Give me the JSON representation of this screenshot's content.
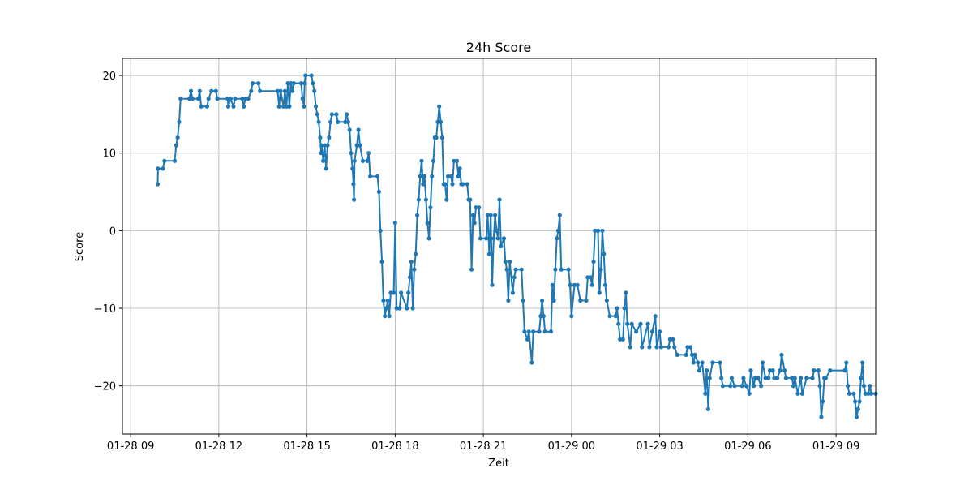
{
  "chart_data": {
    "type": "line",
    "title": "24h Score",
    "xlabel": "Zeit",
    "ylabel": "Score",
    "ylim": [
      -26.2,
      22.2
    ],
    "xlim_hours": [
      8.72,
      34.35
    ],
    "x_ticks": [
      {
        "label": "01-28 09",
        "hour": 9
      },
      {
        "label": "01-28 12",
        "hour": 12
      },
      {
        "label": "01-28 15",
        "hour": 15
      },
      {
        "label": "01-28 18",
        "hour": 18
      },
      {
        "label": "01-28 21",
        "hour": 21
      },
      {
        "label": "01-29 00",
        "hour": 24
      },
      {
        "label": "01-29 03",
        "hour": 27
      },
      {
        "label": "01-29 06",
        "hour": 30
      },
      {
        "label": "01-29 09",
        "hour": 33
      }
    ],
    "y_ticks": [
      20,
      10,
      0,
      -10,
      -20
    ],
    "grid": true,
    "line_color": "#1f77b4",
    "marker": "circle",
    "series": [
      {
        "name": "Score",
        "x_unit": "hours since 01-28 00:00",
        "points": [
          [
            9.92,
            6
          ],
          [
            9.93,
            8
          ],
          [
            10.1,
            8
          ],
          [
            10.15,
            9
          ],
          [
            10.5,
            9
          ],
          [
            10.55,
            11
          ],
          [
            10.6,
            12
          ],
          [
            10.65,
            14
          ],
          [
            10.7,
            17
          ],
          [
            11.0,
            17
          ],
          [
            11.05,
            18
          ],
          [
            11.1,
            17
          ],
          [
            11.3,
            17
          ],
          [
            11.35,
            18
          ],
          [
            11.4,
            16
          ],
          [
            11.6,
            16
          ],
          [
            11.65,
            17
          ],
          [
            11.75,
            18
          ],
          [
            11.9,
            18
          ],
          [
            11.95,
            17
          ],
          [
            12.3,
            17
          ],
          [
            12.32,
            16
          ],
          [
            12.4,
            17
          ],
          [
            12.5,
            16
          ],
          [
            12.55,
            17
          ],
          [
            12.8,
            17
          ],
          [
            12.85,
            16
          ],
          [
            12.9,
            17
          ],
          [
            13.0,
            17
          ],
          [
            13.1,
            18
          ],
          [
            13.15,
            19
          ],
          [
            13.35,
            19
          ],
          [
            13.4,
            18
          ],
          [
            14.0,
            18
          ],
          [
            14.05,
            16
          ],
          [
            14.1,
            18
          ],
          [
            14.2,
            16
          ],
          [
            14.25,
            18
          ],
          [
            14.3,
            16
          ],
          [
            14.35,
            19
          ],
          [
            14.4,
            16
          ],
          [
            14.45,
            19
          ],
          [
            14.5,
            18
          ],
          [
            14.55,
            19
          ],
          [
            14.8,
            19
          ],
          [
            14.85,
            17
          ],
          [
            14.9,
            16
          ],
          [
            14.92,
            19
          ],
          [
            14.95,
            20
          ],
          [
            15.15,
            20
          ],
          [
            15.2,
            19
          ],
          [
            15.25,
            18
          ],
          [
            15.3,
            16
          ],
          [
            15.35,
            15
          ],
          [
            15.4,
            14
          ],
          [
            15.45,
            12
          ],
          [
            15.48,
            10
          ],
          [
            15.5,
            11
          ],
          [
            15.55,
            9
          ],
          [
            15.6,
            11
          ],
          [
            15.65,
            8
          ],
          [
            15.7,
            11
          ],
          [
            15.75,
            12
          ],
          [
            15.8,
            14
          ],
          [
            15.85,
            15
          ],
          [
            16.0,
            15
          ],
          [
            16.05,
            14
          ],
          [
            16.3,
            14
          ],
          [
            16.35,
            15
          ],
          [
            16.4,
            14
          ],
          [
            16.45,
            13
          ],
          [
            16.5,
            10
          ],
          [
            16.55,
            8
          ],
          [
            16.58,
            6
          ],
          [
            16.6,
            4
          ],
          [
            16.62,
            9
          ],
          [
            16.7,
            11
          ],
          [
            16.75,
            13
          ],
          [
            16.8,
            11
          ],
          [
            16.9,
            9
          ],
          [
            17.05,
            9
          ],
          [
            17.1,
            10
          ],
          [
            17.15,
            7
          ],
          [
            17.4,
            7
          ],
          [
            17.45,
            5
          ],
          [
            17.5,
            0
          ],
          [
            17.55,
            -4
          ],
          [
            17.6,
            -9
          ],
          [
            17.65,
            -11
          ],
          [
            17.7,
            -10
          ],
          [
            17.75,
            -9
          ],
          [
            17.8,
            -11
          ],
          [
            17.85,
            -8
          ],
          [
            17.95,
            -8
          ],
          [
            18.0,
            1
          ],
          [
            18.05,
            -10
          ],
          [
            18.15,
            -10
          ],
          [
            18.2,
            -8
          ],
          [
            18.4,
            -10
          ],
          [
            18.45,
            -8
          ],
          [
            18.5,
            -6
          ],
          [
            18.55,
            -4
          ],
          [
            18.6,
            -10
          ],
          [
            18.65,
            -5
          ],
          [
            18.7,
            -3
          ],
          [
            18.75,
            2
          ],
          [
            18.8,
            4
          ],
          [
            18.85,
            7
          ],
          [
            18.9,
            9
          ],
          [
            18.95,
            6
          ],
          [
            19.0,
            7
          ],
          [
            19.05,
            4
          ],
          [
            19.1,
            1
          ],
          [
            19.15,
            -1
          ],
          [
            19.2,
            3
          ],
          [
            19.25,
            7
          ],
          [
            19.3,
            9
          ],
          [
            19.35,
            12
          ],
          [
            19.4,
            12
          ],
          [
            19.45,
            14
          ],
          [
            19.5,
            16
          ],
          [
            19.55,
            14
          ],
          [
            19.6,
            12
          ],
          [
            19.65,
            6
          ],
          [
            19.7,
            6
          ],
          [
            19.75,
            4
          ],
          [
            19.8,
            7
          ],
          [
            19.9,
            7
          ],
          [
            19.95,
            6
          ],
          [
            20.0,
            9
          ],
          [
            20.1,
            9
          ],
          [
            20.15,
            7
          ],
          [
            20.2,
            8
          ],
          [
            20.25,
            6
          ],
          [
            20.3,
            6
          ],
          [
            20.45,
            6
          ],
          [
            20.5,
            4
          ],
          [
            20.55,
            4
          ],
          [
            20.6,
            -5
          ],
          [
            20.65,
            2
          ],
          [
            20.7,
            1
          ],
          [
            20.75,
            3
          ],
          [
            20.85,
            3
          ],
          [
            20.9,
            -1
          ],
          [
            21.1,
            -1
          ],
          [
            21.15,
            2
          ],
          [
            21.2,
            -3
          ],
          [
            21.25,
            2
          ],
          [
            21.3,
            -7
          ],
          [
            21.35,
            -1
          ],
          [
            21.4,
            2
          ],
          [
            21.45,
            0
          ],
          [
            21.5,
            -1
          ],
          [
            21.55,
            4
          ],
          [
            21.6,
            -2
          ],
          [
            21.7,
            -1
          ],
          [
            21.75,
            -4
          ],
          [
            21.8,
            -5
          ],
          [
            21.85,
            -9
          ],
          [
            21.9,
            -4
          ],
          [
            22.0,
            -8
          ],
          [
            22.05,
            -6
          ],
          [
            22.1,
            -5
          ],
          [
            22.3,
            -5
          ],
          [
            22.35,
            -9
          ],
          [
            22.4,
            -13
          ],
          [
            22.5,
            -14
          ],
          [
            22.55,
            -13
          ],
          [
            22.65,
            -17
          ],
          [
            22.7,
            -13
          ],
          [
            22.9,
            -13
          ],
          [
            22.95,
            -11
          ],
          [
            23.0,
            -9
          ],
          [
            23.05,
            -11
          ],
          [
            23.1,
            -13
          ],
          [
            23.3,
            -13
          ],
          [
            23.35,
            -7
          ],
          [
            23.4,
            -9
          ],
          [
            23.45,
            -5
          ],
          [
            23.5,
            -1
          ],
          [
            23.55,
            0
          ],
          [
            23.6,
            2
          ],
          [
            23.65,
            -5
          ],
          [
            23.9,
            -5
          ],
          [
            23.95,
            -7
          ],
          [
            24.0,
            -11
          ],
          [
            24.1,
            -7
          ],
          [
            24.2,
            -7
          ],
          [
            24.3,
            -9
          ],
          [
            24.5,
            -9
          ],
          [
            24.55,
            -6
          ],
          [
            24.65,
            -6
          ],
          [
            24.7,
            -7
          ],
          [
            24.75,
            -4
          ],
          [
            24.8,
            0
          ],
          [
            24.9,
            0
          ],
          [
            24.95,
            -8
          ],
          [
            25.0,
            -5
          ],
          [
            25.05,
            0
          ],
          [
            25.1,
            -3
          ],
          [
            25.15,
            -7
          ],
          [
            25.2,
            -9
          ],
          [
            25.3,
            -11
          ],
          [
            25.5,
            -11
          ],
          [
            25.55,
            -10
          ],
          [
            25.6,
            -12
          ],
          [
            25.65,
            -14
          ],
          [
            25.75,
            -14
          ],
          [
            25.8,
            -10
          ],
          [
            25.85,
            -8
          ],
          [
            25.9,
            -12
          ],
          [
            26.0,
            -15
          ],
          [
            26.05,
            -12
          ],
          [
            26.2,
            -13
          ],
          [
            26.35,
            -12
          ],
          [
            26.4,
            -15
          ],
          [
            26.6,
            -12
          ],
          [
            26.65,
            -15
          ],
          [
            26.75,
            -13
          ],
          [
            26.85,
            -11
          ],
          [
            26.9,
            -15
          ],
          [
            27.0,
            -13
          ],
          [
            27.05,
            -15
          ],
          [
            27.3,
            -15
          ],
          [
            27.35,
            -14
          ],
          [
            27.45,
            -14
          ],
          [
            27.5,
            -15
          ],
          [
            27.6,
            -16
          ],
          [
            27.9,
            -16
          ],
          [
            27.95,
            -15
          ],
          [
            28.05,
            -15
          ],
          [
            28.1,
            -16
          ],
          [
            28.15,
            -17
          ],
          [
            28.2,
            -16
          ],
          [
            28.3,
            -17
          ],
          [
            28.35,
            -18
          ],
          [
            28.45,
            -17
          ],
          [
            28.55,
            -21
          ],
          [
            28.6,
            -18
          ],
          [
            28.65,
            -23
          ],
          [
            28.7,
            -19
          ],
          [
            28.8,
            -17
          ],
          [
            29.05,
            -17
          ],
          [
            29.1,
            -19
          ],
          [
            29.15,
            -20
          ],
          [
            29.4,
            -20
          ],
          [
            29.45,
            -19
          ],
          [
            29.55,
            -20
          ],
          [
            29.8,
            -20
          ],
          [
            29.85,
            -19
          ],
          [
            29.95,
            -20
          ],
          [
            30.05,
            -21
          ],
          [
            30.1,
            -18
          ],
          [
            30.2,
            -20
          ],
          [
            30.25,
            -19
          ],
          [
            30.35,
            -19
          ],
          [
            30.45,
            -20
          ],
          [
            30.5,
            -17
          ],
          [
            30.6,
            -19
          ],
          [
            30.7,
            -19
          ],
          [
            30.75,
            -18
          ],
          [
            30.85,
            -18
          ],
          [
            30.9,
            -19
          ],
          [
            31.0,
            -19
          ],
          [
            31.1,
            -18
          ],
          [
            31.15,
            -16
          ],
          [
            31.25,
            -18
          ],
          [
            31.3,
            -19
          ],
          [
            31.5,
            -19
          ],
          [
            31.55,
            -20
          ],
          [
            31.6,
            -19
          ],
          [
            31.7,
            -21
          ],
          [
            31.8,
            -19
          ],
          [
            31.85,
            -21
          ],
          [
            32.0,
            -19
          ],
          [
            32.2,
            -19
          ],
          [
            32.25,
            -18
          ],
          [
            32.4,
            -18
          ],
          [
            32.45,
            -20
          ],
          [
            32.5,
            -24
          ],
          [
            32.55,
            -22
          ],
          [
            32.6,
            -19
          ],
          [
            32.65,
            -19
          ],
          [
            32.8,
            -18
          ],
          [
            33.3,
            -18
          ],
          [
            33.35,
            -17
          ],
          [
            33.4,
            -20
          ],
          [
            33.45,
            -21
          ],
          [
            33.6,
            -21
          ],
          [
            33.65,
            -22
          ],
          [
            33.7,
            -24
          ],
          [
            33.75,
            -23
          ],
          [
            33.8,
            -22
          ],
          [
            33.85,
            -19
          ],
          [
            33.9,
            -17
          ],
          [
            33.95,
            -20
          ],
          [
            34.0,
            -21
          ],
          [
            34.1,
            -21
          ],
          [
            34.15,
            -20
          ],
          [
            34.2,
            -21
          ],
          [
            34.35,
            -21
          ]
        ]
      }
    ]
  }
}
